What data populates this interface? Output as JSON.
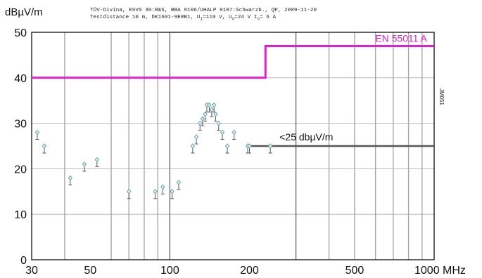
{
  "chart_data": {
    "type": "scatter",
    "xscale": "log",
    "xlim": [
      30,
      1000
    ],
    "ylim": [
      0,
      50
    ],
    "ylabel": "dBµV/m",
    "xlabel": "MHz",
    "header": {
      "line1": "TÜV-Divina, ESVS 30:R&S, BBA 9106/UHALP 9107:Schwarzb., QP, 2009-11-20",
      "line2_a": "Testdistance 10 m, DK1601-9ERB1, U",
      "line2_a_sub": "i",
      "line2_b": "=110 V, U",
      "line2_b_sub": "o",
      "line2_c": "=24 V I",
      "line2_c_sub": "o",
      "line2_d": "= 6 A"
    },
    "side_label": "JM051",
    "yticks": [
      {
        "value": 0,
        "label": "0"
      },
      {
        "value": 10,
        "label": "10"
      },
      {
        "value": 20,
        "label": "20"
      },
      {
        "value": 30,
        "label": "30"
      },
      {
        "value": 40,
        "label": "40"
      },
      {
        "value": 50,
        "label": "50"
      }
    ],
    "xticks": [
      {
        "value": 30,
        "label": "30"
      },
      {
        "value": 50,
        "label": "50"
      },
      {
        "value": 100,
        "label": "100"
      },
      {
        "value": 200,
        "label": "200"
      },
      {
        "value": 500,
        "label": "500"
      },
      {
        "value": 1000,
        "label": "1000 MHz"
      }
    ],
    "vgrid": [
      40,
      60,
      70,
      80,
      90,
      100,
      300,
      400,
      500,
      600,
      700,
      800,
      900
    ],
    "vgrid_major": [
      100,
      300
    ],
    "hgrid": [
      10,
      20,
      30,
      40
    ],
    "limit_line": {
      "name": "EN 55011 A",
      "color": "#e020d0",
      "points": [
        [
          30,
          40
        ],
        [
          230,
          40
        ],
        [
          230,
          47
        ],
        [
          1000,
          47
        ]
      ]
    },
    "reference_line": {
      "name": "<25 dbµV/m",
      "color": "#555555",
      "points": [
        [
          200,
          25
        ],
        [
          1000,
          25
        ]
      ]
    },
    "series": [
      {
        "marker_color": "#6aa0a8",
        "points": [
          [
            31.5,
            28
          ],
          [
            33.5,
            25
          ],
          [
            42,
            18
          ],
          [
            47.5,
            21
          ],
          [
            53,
            22
          ],
          [
            70,
            15
          ],
          [
            88,
            15
          ],
          [
            94,
            16
          ],
          [
            102,
            15
          ],
          [
            108,
            17
          ],
          [
            122,
            25
          ],
          [
            126,
            27
          ],
          [
            130,
            30
          ],
          [
            133,
            31
          ],
          [
            136,
            32
          ],
          [
            138,
            34
          ],
          [
            141,
            34
          ],
          [
            144,
            33
          ],
          [
            147,
            34
          ],
          [
            149,
            32
          ],
          [
            153,
            30
          ],
          [
            158,
            28
          ],
          [
            165,
            25
          ],
          [
            175,
            28
          ],
          [
            197,
            25
          ],
          [
            200,
            25
          ],
          [
            240,
            25
          ]
        ]
      }
    ]
  }
}
